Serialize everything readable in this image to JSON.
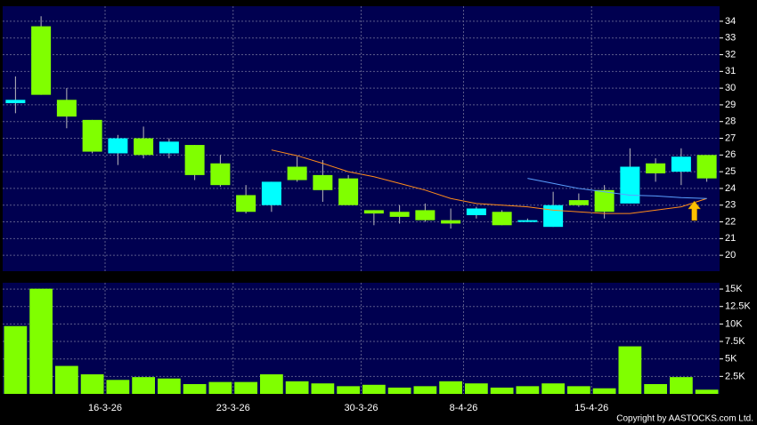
{
  "chart_data": [
    {
      "type": "candlestick",
      "open": [
        29.1,
        33.7,
        29.3,
        28.1,
        26.1,
        27.0,
        26.1,
        26.6,
        25.5,
        23.6,
        23.0,
        25.3,
        24.8,
        24.6,
        22.7,
        22.6,
        22.7,
        22.1,
        22.4,
        22.6,
        22.0,
        21.7,
        23.3,
        23.9,
        23.1,
        25.5,
        25.0,
        26.0
      ],
      "high": [
        30.7,
        34.3,
        30.0,
        28.1,
        27.2,
        27.7,
        27.0,
        26.6,
        26.0,
        24.2,
        24.4,
        25.9,
        25.7,
        24.8,
        22.7,
        23.0,
        23.1,
        22.8,
        22.9,
        22.7,
        22.2,
        23.8,
        23.7,
        24.2,
        26.4,
        25.8,
        26.4,
        26.0
      ],
      "low": [
        28.5,
        29.6,
        27.6,
        26.1,
        25.4,
        25.8,
        25.8,
        24.5,
        24.1,
        22.5,
        22.6,
        24.4,
        23.2,
        23.0,
        21.8,
        21.9,
        22.0,
        21.6,
        22.2,
        21.8,
        22.0,
        21.7,
        22.9,
        22.2,
        23.1,
        24.4,
        24.2,
        24.4
      ],
      "close": [
        29.3,
        29.6,
        28.3,
        26.2,
        27.0,
        26.0,
        26.8,
        24.8,
        24.2,
        22.6,
        24.4,
        24.5,
        23.9,
        23.0,
        22.5,
        22.3,
        22.1,
        21.9,
        22.8,
        21.8,
        22.1,
        23.0,
        23.0,
        22.6,
        25.3,
        24.9,
        25.9,
        24.6
      ],
      "up_color": "#00ffff",
      "down_color": "#80ff00",
      "series": [
        {
          "color": "#ff8c1a",
          "values": [
            null,
            null,
            null,
            null,
            null,
            null,
            null,
            null,
            null,
            null,
            26.3,
            25.96,
            25.5,
            25.0,
            24.7,
            24.3,
            23.9,
            23.4,
            23.1,
            23.0,
            22.9,
            22.7,
            22.6,
            22.5,
            22.5,
            22.7,
            22.9,
            23.4
          ]
        },
        {
          "color": "#5aa0ff",
          "values": [
            null,
            null,
            null,
            null,
            null,
            null,
            null,
            null,
            null,
            null,
            null,
            null,
            null,
            null,
            null,
            null,
            null,
            null,
            null,
            null,
            24.6,
            24.3,
            24.0,
            23.8,
            23.6,
            23.55,
            23.45,
            23.4
          ]
        }
      ],
      "ylim": [
        19.05,
        34.9
      ],
      "yticks": [
        20,
        21,
        22,
        23,
        24,
        25,
        26,
        27,
        28,
        29,
        30,
        31,
        32,
        33,
        34
      ],
      "grid": true
    },
    {
      "type": "bar",
      "categories": [
        null,
        null,
        null,
        null,
        "16-3-26",
        null,
        null,
        null,
        null,
        "23-3-26",
        null,
        null,
        null,
        null,
        "30-3-26",
        null,
        null,
        null,
        "8-4-26",
        null,
        null,
        null,
        null,
        "15-4-26",
        null,
        null,
        null,
        null
      ],
      "values": [
        9700,
        15050,
        4000,
        2800,
        2000,
        2400,
        2200,
        1400,
        1700,
        1700,
        2800,
        1800,
        1500,
        1100,
        1300,
        900,
        1100,
        1800,
        1500,
        900,
        1100,
        1500,
        1100,
        800,
        6800,
        1400,
        2400,
        600
      ],
      "color": "#80ff00",
      "ylim": [
        0,
        15900
      ],
      "yticks": [
        {
          "value": 2500,
          "label": "2.5K"
        },
        {
          "value": 5000,
          "label": "5K"
        },
        {
          "value": 7500,
          "label": "7.5K"
        },
        {
          "value": 10000,
          "label": "10K"
        },
        {
          "value": 12500,
          "label": "12.5K"
        },
        {
          "value": 15000,
          "label": "15K"
        }
      ],
      "grid": true
    }
  ],
  "footer": "Copyright by AASTOCKS.com Ltd."
}
